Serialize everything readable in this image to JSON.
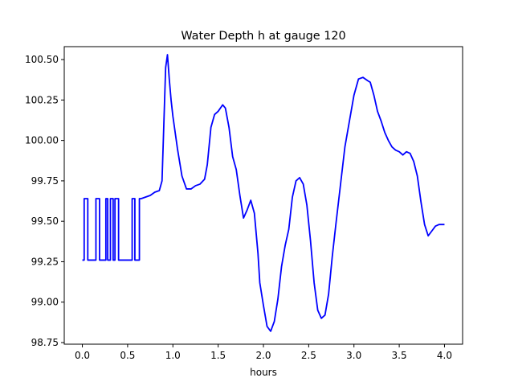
{
  "chart_data": {
    "type": "line",
    "title": "Water Depth h at gauge 120",
    "xlabel": "hours",
    "ylabel": "",
    "xlim": [
      -0.2,
      4.2
    ],
    "ylim": [
      98.74,
      100.58
    ],
    "xticks": [
      0.0,
      0.5,
      1.0,
      1.5,
      2.0,
      2.5,
      3.0,
      3.5,
      4.0
    ],
    "xtick_labels": [
      "0.0",
      "0.5",
      "1.0",
      "1.5",
      "2.0",
      "2.5",
      "3.0",
      "3.5",
      "4.0"
    ],
    "yticks": [
      98.75,
      99.0,
      99.25,
      99.5,
      99.75,
      100.0,
      100.25,
      100.5
    ],
    "ytick_labels": [
      "98.75",
      "99.00",
      "99.25",
      "99.50",
      "99.75",
      "100.00",
      "100.25",
      "100.50"
    ],
    "grid": false,
    "series": [
      {
        "color": "#0000ff",
        "x": [
          0.0,
          0.02,
          0.02,
          0.06,
          0.06,
          0.08,
          0.08,
          0.15,
          0.15,
          0.19,
          0.19,
          0.22,
          0.22,
          0.26,
          0.26,
          0.28,
          0.28,
          0.31,
          0.31,
          0.34,
          0.34,
          0.36,
          0.36,
          0.4,
          0.4,
          0.42,
          0.42,
          0.55,
          0.55,
          0.58,
          0.58,
          0.63,
          0.63,
          0.65,
          0.7,
          0.75,
          0.8,
          0.85,
          0.88,
          0.9,
          0.92,
          0.94,
          0.96,
          0.98,
          1.0,
          1.05,
          1.1,
          1.15,
          1.2,
          1.25,
          1.3,
          1.35,
          1.38,
          1.42,
          1.46,
          1.5,
          1.55,
          1.58,
          1.62,
          1.66,
          1.7,
          1.74,
          1.78,
          1.82,
          1.86,
          1.9,
          1.94,
          1.96,
          2.0,
          2.04,
          2.08,
          2.12,
          2.16,
          2.2,
          2.24,
          2.28,
          2.32,
          2.36,
          2.4,
          2.44,
          2.48,
          2.52,
          2.56,
          2.6,
          2.64,
          2.68,
          2.72,
          2.76,
          2.8,
          2.85,
          2.9,
          2.95,
          3.0,
          3.05,
          3.1,
          3.15,
          3.18,
          3.22,
          3.26,
          3.3,
          3.34,
          3.38,
          3.42,
          3.46,
          3.5,
          3.54,
          3.58,
          3.62,
          3.66,
          3.7,
          3.74,
          3.78,
          3.82,
          3.86,
          3.9,
          3.94,
          3.98,
          4.0
        ],
        "y": [
          99.26,
          99.26,
          99.64,
          99.64,
          99.26,
          99.26,
          99.26,
          99.26,
          99.64,
          99.64,
          99.26,
          99.26,
          99.26,
          99.26,
          99.64,
          99.64,
          99.26,
          99.26,
          99.64,
          99.64,
          99.26,
          99.26,
          99.64,
          99.64,
          99.26,
          99.26,
          99.26,
          99.26,
          99.64,
          99.64,
          99.26,
          99.26,
          99.64,
          99.64,
          99.65,
          99.66,
          99.68,
          99.69,
          99.75,
          100.1,
          100.45,
          100.53,
          100.38,
          100.25,
          100.15,
          99.95,
          99.78,
          99.7,
          99.7,
          99.72,
          99.73,
          99.76,
          99.85,
          100.08,
          100.16,
          100.18,
          100.22,
          100.2,
          100.08,
          99.9,
          99.82,
          99.66,
          99.52,
          99.57,
          99.63,
          99.55,
          99.3,
          99.12,
          98.98,
          98.85,
          98.82,
          98.88,
          99.02,
          99.22,
          99.35,
          99.45,
          99.65,
          99.75,
          99.77,
          99.73,
          99.6,
          99.38,
          99.12,
          98.95,
          98.9,
          98.92,
          99.05,
          99.28,
          99.48,
          99.72,
          99.96,
          100.12,
          100.28,
          100.38,
          100.39,
          100.37,
          100.36,
          100.28,
          100.18,
          100.12,
          100.05,
          100.0,
          99.96,
          99.94,
          99.93,
          99.91,
          99.93,
          99.92,
          99.87,
          99.78,
          99.62,
          99.48,
          99.41,
          99.44,
          99.47,
          99.48,
          99.48,
          99.48
        ]
      }
    ]
  }
}
